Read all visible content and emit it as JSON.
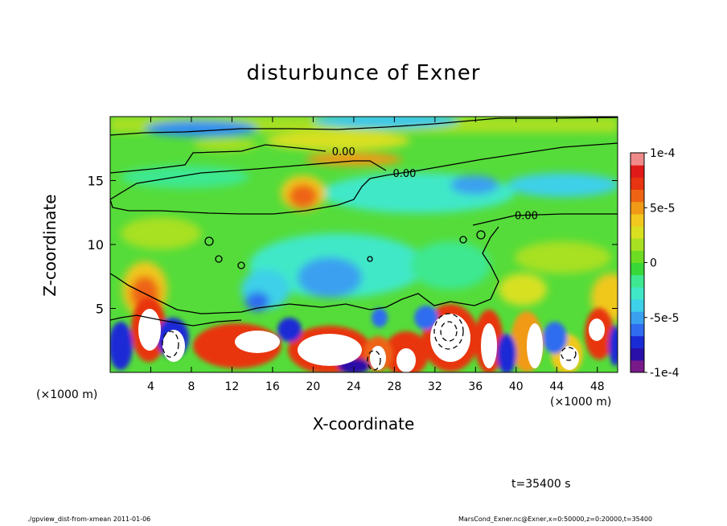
{
  "chart_data": {
    "type": "heatmap",
    "title": "disturbunce of Exner",
    "xlabel": "X-coordinate",
    "ylabel": "Z-coordinate",
    "x_unit": "(×1000 m)",
    "x_unit_right": "(×1000 m)",
    "xlim": [
      0,
      50
    ],
    "ylim": [
      0,
      20
    ],
    "x_ticks": [
      4,
      8,
      12,
      16,
      20,
      24,
      28,
      32,
      36,
      40,
      44,
      48
    ],
    "y_ticks": [
      5,
      10,
      15
    ],
    "colorbar": {
      "range": [
        -0.0001,
        0.0001
      ],
      "ticks": [
        {
          "value": 0.0001,
          "label": "1e-4"
        },
        {
          "value": 5e-05,
          "label": "5e-5"
        },
        {
          "value": 0,
          "label": "0"
        },
        {
          "value": -5e-05,
          "label": "-5e-5"
        },
        {
          "value": -0.0001,
          "label": "-1e-4"
        }
      ],
      "colors": [
        "#7a1a8a",
        "#2a0fa8",
        "#1a2bd6",
        "#2f6cf0",
        "#3aa0f0",
        "#3dd0e8",
        "#40e8c8",
        "#3ee890",
        "#38d838",
        "#6edc22",
        "#a8e022",
        "#d8e020",
        "#f0c81e",
        "#f09a18",
        "#ee6414",
        "#e83410",
        "#e01a18",
        "#f08a8a"
      ]
    },
    "contour_labels": [
      {
        "x": 23.0,
        "z": 17.3,
        "text": "0.00"
      },
      {
        "x": 29.0,
        "z": 15.6,
        "text": "0.00"
      },
      {
        "x": 41.0,
        "z": 12.3,
        "text": "0.00"
      }
    ],
    "annotations": {
      "time": "t=35400 s",
      "footer_left": "./gpview_dist-from-xmean  2011-01-06",
      "footer_right": "MarsCond_Exner.nc@Exner,x=0:50000,z=0:20000,t=35400"
    }
  }
}
